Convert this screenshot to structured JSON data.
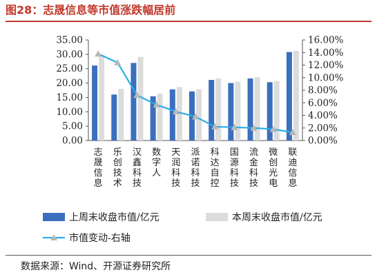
{
  "title": "图28：志晟信息等市值涨跌幅居前",
  "source": "数据来源：Wind、开源证券研究所",
  "colors": {
    "title": "#c0392b",
    "bar_last": "#3b6fbe",
    "bar_this": "#dcdcdc",
    "line": "#29aee6",
    "marker": "#b8b8b8"
  },
  "chart_data": {
    "type": "bar",
    "categories": [
      "志晟信息",
      "乐创技术",
      "汉鑫科技",
      "数字人",
      "天润科技",
      "派诺科技",
      "科达自控",
      "国源科技",
      "流金科技",
      "微创光电",
      "联迪信息"
    ],
    "series": [
      {
        "name": "上周末收盘市值/亿元",
        "axis": "left",
        "kind": "bar",
        "values": [
          26.1,
          16.0,
          27.0,
          15.4,
          17.8,
          17.1,
          21.1,
          20.0,
          21.6,
          20.3,
          30.8
        ]
      },
      {
        "name": "本周末收盘市值/亿元",
        "axis": "left",
        "kind": "bar",
        "values": [
          29.8,
          18.0,
          29.1,
          16.3,
          18.6,
          17.8,
          21.6,
          20.5,
          22.0,
          20.7,
          31.2
        ]
      },
      {
        "name": "市值变动-右轴",
        "axis": "right",
        "kind": "line",
        "values": [
          13.8,
          12.4,
          7.2,
          5.7,
          4.6,
          3.8,
          2.2,
          2.1,
          2.0,
          1.8,
          1.3
        ]
      }
    ],
    "ylim_left": [
      0,
      35
    ],
    "ylim_right": [
      0,
      16
    ],
    "left_ticks": [
      "0.00",
      "5.00",
      "10.00",
      "15.00",
      "20.00",
      "25.00",
      "30.00",
      "35.00"
    ],
    "right_ticks": [
      "0.00%",
      "2.00%",
      "4.00%",
      "6.00%",
      "8.00%",
      "10.00%",
      "12.00%",
      "14.00%",
      "16.00%"
    ],
    "grid": false,
    "legend_position": "bottom"
  }
}
